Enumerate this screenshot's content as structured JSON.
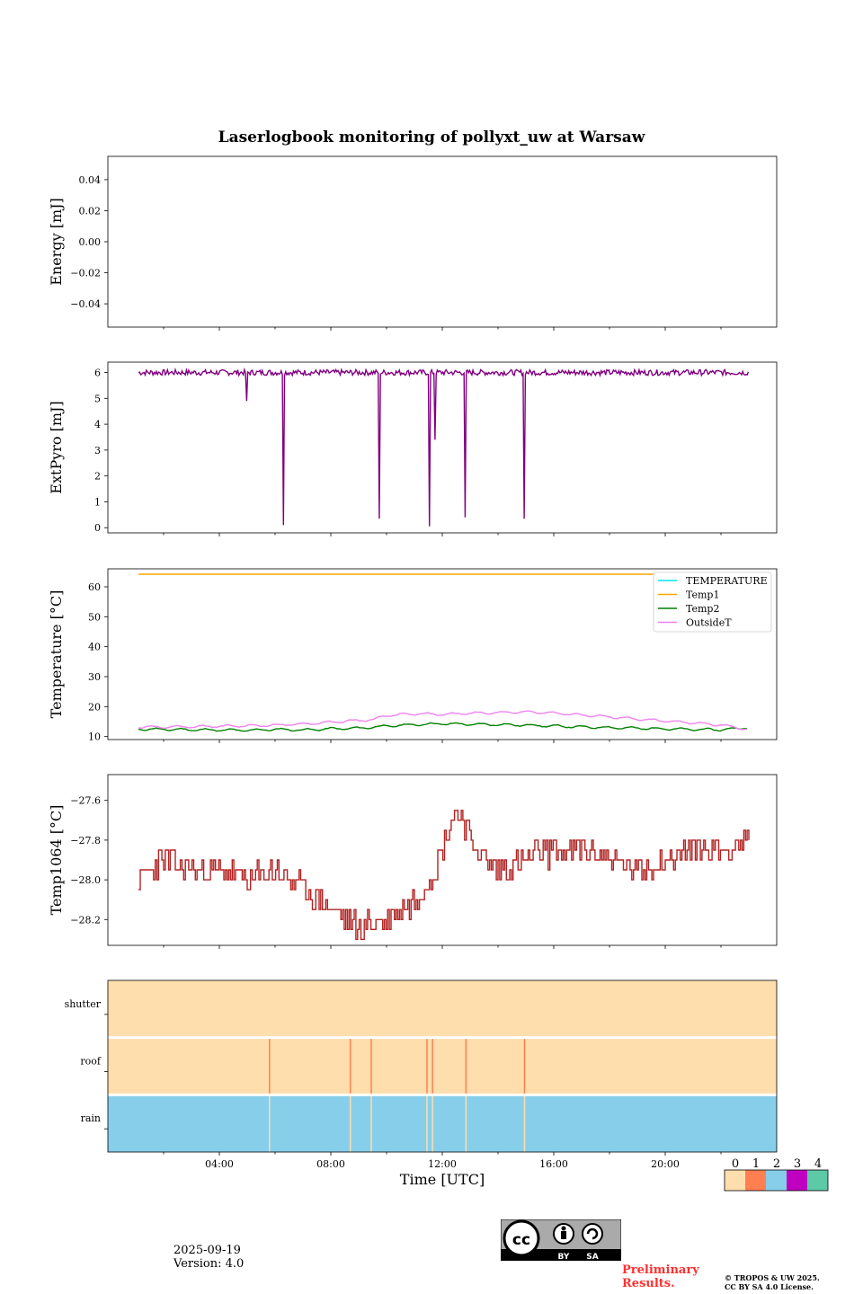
{
  "title": "Laserlogbook monitoring of pollyxt_uw at Warsaw",
  "chart_data": [
    {
      "type": "line",
      "panel": "energy",
      "ylabel": "Energy [mJ]",
      "ylim": [
        -0.055,
        0.055
      ],
      "yticks": [
        -0.04,
        -0.02,
        0.0,
        0.02,
        0.04
      ],
      "ytick_labels": [
        "−0.04",
        "−0.02",
        "0.00",
        "0.02",
        "0.04"
      ],
      "series": []
    },
    {
      "type": "line",
      "panel": "extpyro",
      "ylabel": "ExtPyro [mJ]",
      "ylim": [
        -0.2,
        6.4
      ],
      "yticks": [
        0,
        1,
        2,
        3,
        4,
        5,
        6
      ],
      "ytick_labels": [
        "0",
        "1",
        "2",
        "3",
        "4",
        "5",
        "6"
      ],
      "series": [
        {
          "name": "ExtPyro",
          "color": "#800080",
          "baseline": 6.0,
          "drops": [
            [
              4.98,
              4.9
            ],
            [
              6.3,
              0.1
            ],
            [
              9.75,
              0.35
            ],
            [
              11.55,
              0.05
            ],
            [
              11.72,
              3.4
            ],
            [
              12.8,
              0.4
            ],
            [
              14.95,
              0.35
            ]
          ]
        }
      ]
    },
    {
      "type": "line",
      "panel": "temperature",
      "ylabel": "Temperature [°C]",
      "ylim": [
        9,
        66
      ],
      "yticks": [
        10,
        20,
        30,
        40,
        50,
        60
      ],
      "ytick_labels": [
        "10",
        "20",
        "30",
        "40",
        "50",
        "60"
      ],
      "series": [
        {
          "name": "TEMPERATURE",
          "color": "#00e5ee",
          "x": [],
          "y": []
        },
        {
          "name": "Temp1",
          "color": "#ffa500",
          "x": [
            1.1,
            23.0
          ],
          "y": [
            64.2,
            64.2
          ]
        },
        {
          "name": "Temp2",
          "color": "#008000",
          "x": [
            1.1,
            3,
            5,
            6,
            7,
            8,
            9,
            10,
            11,
            12,
            13,
            14,
            15,
            16,
            17,
            18,
            19,
            20,
            21,
            22,
            23
          ],
          "y": [
            12.5,
            12.3,
            12.1,
            12.4,
            12.2,
            12.6,
            12.8,
            13.5,
            14.0,
            14.3,
            14.1,
            14.0,
            13.8,
            13.5,
            13.2,
            13.0,
            12.8,
            12.6,
            12.4,
            12.3,
            13.0
          ]
        },
        {
          "name": "OutsideT",
          "color": "#ee82ee",
          "x": [
            1.1,
            3,
            5,
            6,
            7,
            8,
            9,
            9.5,
            10,
            11,
            12,
            13,
            14,
            15,
            16,
            17,
            18,
            19,
            20,
            21,
            22,
            23
          ],
          "y": [
            13.2,
            13.3,
            13.6,
            13.8,
            14.2,
            14.8,
            15.4,
            15.6,
            17.0,
            17.6,
            17.4,
            17.8,
            18.0,
            18.2,
            17.9,
            17.2,
            16.6,
            15.8,
            15.2,
            14.6,
            13.8,
            12.4
          ]
        }
      ],
      "legend": "top-right"
    },
    {
      "type": "line",
      "panel": "temp1064",
      "ylabel": "Temp1064 [°C]",
      "ylim": [
        -28.33,
        -27.47
      ],
      "yticks": [
        -28.2,
        -28.0,
        -27.8,
        -27.6
      ],
      "ytick_labels": [
        "−28.2",
        "−28.0",
        "−27.8",
        "−27.6"
      ],
      "series": [
        {
          "name": "Temp1064",
          "color": "#b22222",
          "x": [
            1.1,
            2,
            3,
            4,
            5,
            6,
            7,
            8,
            8.5,
            9,
            9.5,
            10,
            10.5,
            11,
            11.5,
            12,
            12.3,
            12.6,
            13,
            13.5,
            14,
            15,
            16,
            17,
            18,
            19,
            20,
            21,
            22,
            23
          ],
          "y": [
            -28.0,
            -27.9,
            -27.95,
            -27.95,
            -28.0,
            -27.95,
            -28.05,
            -28.15,
            -28.2,
            -28.25,
            -28.2,
            -28.2,
            -28.15,
            -28.1,
            -28.0,
            -27.85,
            -27.7,
            -27.65,
            -27.8,
            -27.9,
            -27.95,
            -27.9,
            -27.85,
            -27.85,
            -27.9,
            -27.95,
            -27.9,
            -27.85,
            -27.85,
            -27.8
          ]
        }
      ]
    },
    {
      "type": "heatmap",
      "panel": "status",
      "rows": [
        "shutter",
        "roof",
        "rain"
      ],
      "status_colors": {
        "0": "#ffdead",
        "1": "#ff7f50",
        "2": "#87ceeb",
        "3": "#c000c0",
        "4": "#5cc9a7"
      },
      "rain_status": 2,
      "roof_events_hours": [
        5.8,
        8.7,
        9.45,
        11.45,
        11.65,
        12.85,
        14.95
      ]
    }
  ],
  "xaxis": {
    "xlabel": "Time [UTC]",
    "xlim": [
      0,
      24
    ],
    "major_ticks": [
      4,
      8,
      12,
      16,
      20
    ],
    "tick_labels": [
      "04:00",
      "08:00",
      "12:00",
      "16:00",
      "20:00"
    ]
  },
  "colorbar": {
    "labels": [
      "0",
      "1",
      "2",
      "3",
      "4"
    ]
  },
  "footer": {
    "date": "2025-09-19",
    "version": "Version: 4.0",
    "prelim_1": "Preliminary",
    "prelim_2": "Results.",
    "copyright_1": "© TROPOS & UW 2025.",
    "copyright_2": "CC BY SA 4.0 License.",
    "cc_by": "BY",
    "cc_sa": "SA"
  }
}
